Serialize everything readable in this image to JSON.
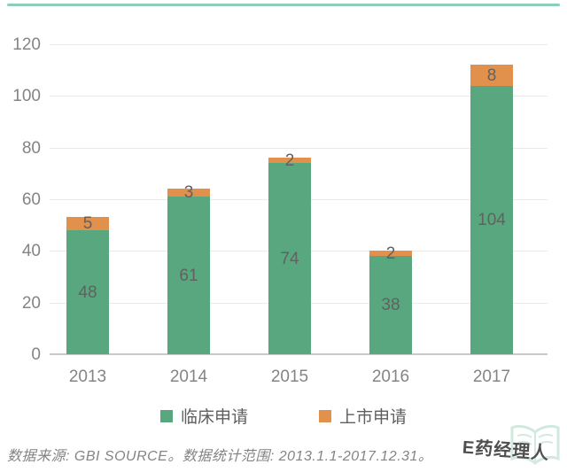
{
  "chart_data": {
    "type": "bar",
    "stacked": true,
    "title": "",
    "xlabel": "",
    "ylabel": "",
    "categories": [
      "2013",
      "2014",
      "2015",
      "2016",
      "2017"
    ],
    "series": [
      {
        "name": "临床申请",
        "color": "#59a77e",
        "values": [
          48,
          61,
          74,
          38,
          104
        ]
      },
      {
        "name": "上市申请",
        "color": "#e2914c",
        "values": [
          5,
          3,
          2,
          2,
          8
        ]
      }
    ],
    "totals": [
      53,
      64,
      76,
      40,
      112
    ],
    "ylim": [
      0,
      120
    ],
    "ytick_step": 20,
    "yticks": [
      0,
      20,
      40,
      60,
      80,
      100,
      120
    ],
    "grid": true,
    "value_labels": true,
    "legend_position": "bottom"
  },
  "footer": {
    "source_text": "数据来源: GBI SOURCE。数据统计范围: 2013.1.1-2017.12.31。",
    "watermark_text": "E药经理人"
  },
  "colors": {
    "top_rule": "#8ccfb9",
    "gridline": "#eaeaea",
    "axis_line": "#c9c9c9",
    "tick_label": "#848484",
    "value_label": "#616161",
    "source_text": "#848484",
    "watermark_text": "#4f4f4f",
    "watermark_icon": "#9fcfba"
  }
}
